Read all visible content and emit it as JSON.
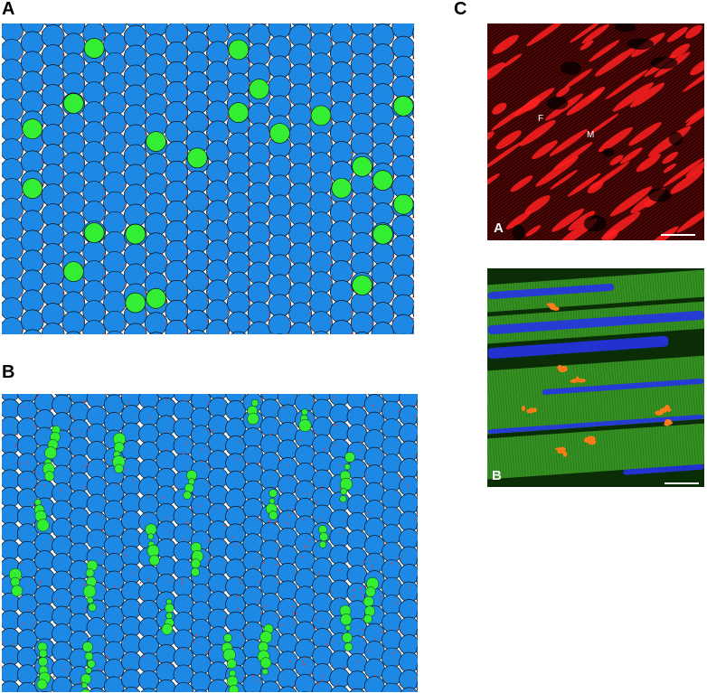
{
  "panels": {
    "A": {
      "letter": "A"
    },
    "B": {
      "letter": "B"
    },
    "C": {
      "letter": "C"
    }
  },
  "micrographs": {
    "top": {
      "label": "A",
      "marker_f": "F",
      "marker_m": "M"
    },
    "bottom": {
      "label": "B"
    }
  },
  "colors": {
    "myocyte": "#1e88e5",
    "myocyte_dark": "#1a73d1",
    "fibroblast": "#33ee33",
    "boundary_dots": "#e53935",
    "outline": "#000000",
    "micro_top_bg": "#2a0303",
    "micro_top_signal": "#ff2020",
    "micro_bottom_bg": "#0b2d05",
    "micro_bottom_fiber": "#3fa52a",
    "micro_bottom_nuclei": "#2533e6",
    "micro_bottom_orange": "#ff7a18"
  }
}
